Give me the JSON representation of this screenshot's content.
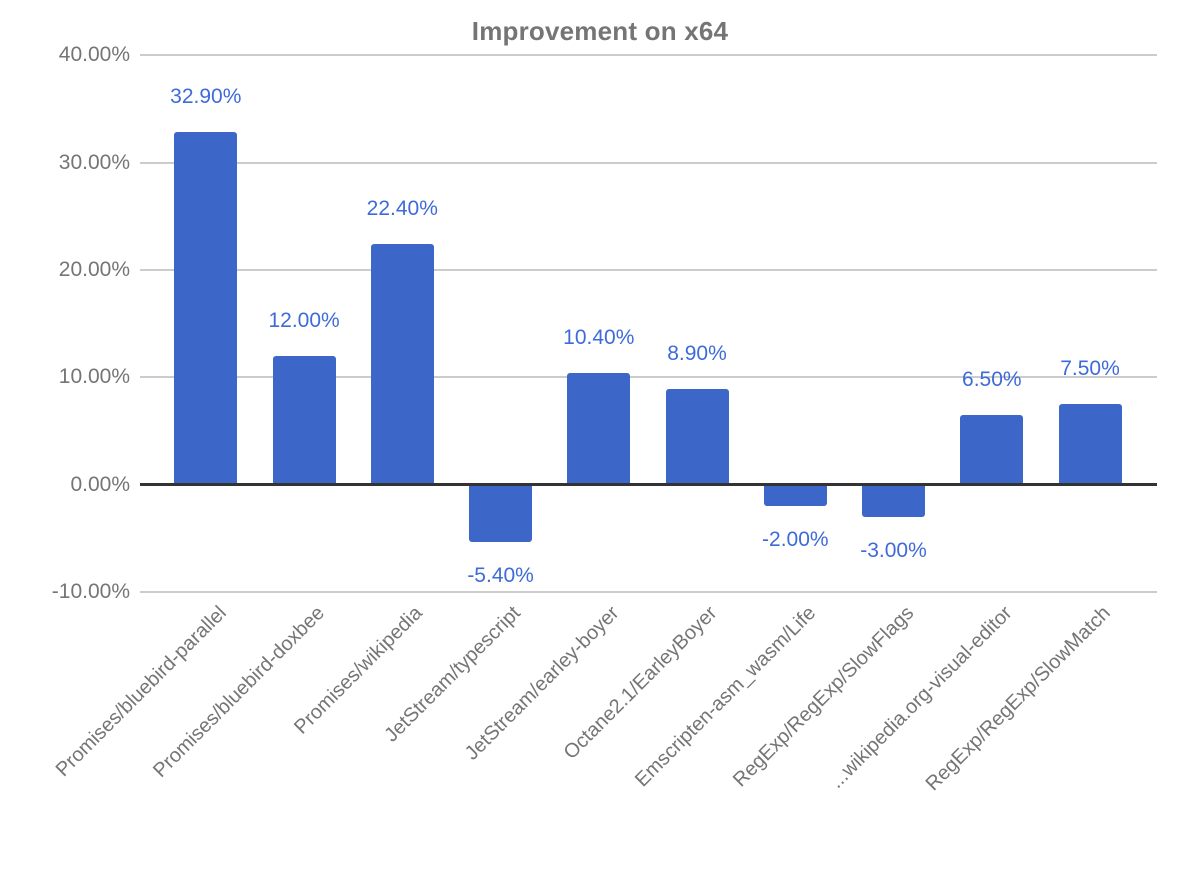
{
  "chart_data": {
    "type": "bar",
    "title": "Improvement on x64",
    "categories": [
      "Promises/bluebird-parallel",
      "Promises/bluebird-doxbee",
      "Promises/wikipedia",
      "JetStream/typescript",
      "JetStream/earley-boyer",
      "Octane2.1/EarleyBoyer",
      "Emscripten-asm_wasm/Life",
      "RegExp/RegExp/SlowFlags",
      "...wikipedia.org-visual-editor",
      "RegExp/RegExp/SlowMatch"
    ],
    "values": [
      32.9,
      12.0,
      22.4,
      -5.4,
      10.4,
      8.9,
      -2.0,
      -3.0,
      6.5,
      7.5
    ],
    "value_labels": [
      "32.90%",
      "12.00%",
      "22.40%",
      "-5.40%",
      "10.40%",
      "8.90%",
      "-2.00%",
      "-3.00%",
      "6.50%",
      "7.50%"
    ],
    "y_ticks": [
      {
        "label": "40.00%",
        "value": 40
      },
      {
        "label": "30.00%",
        "value": 30
      },
      {
        "label": "20.00%",
        "value": 20
      },
      {
        "label": "10.00%",
        "value": 10
      },
      {
        "label": "0.00%",
        "value": 0
      },
      {
        "label": "-10.00%",
        "value": -10
      }
    ],
    "ylim": [
      -10,
      40
    ],
    "grid": true,
    "legend": "none",
    "xlabel": "",
    "ylabel": "",
    "colors": {
      "bar": "#3C67C8",
      "value_label": "#3E6BD8",
      "title": "#757575",
      "axis_text": "#757575",
      "gridline": "#CCCCCC",
      "baseline": "#333333",
      "background": "#FFFFFF"
    }
  }
}
